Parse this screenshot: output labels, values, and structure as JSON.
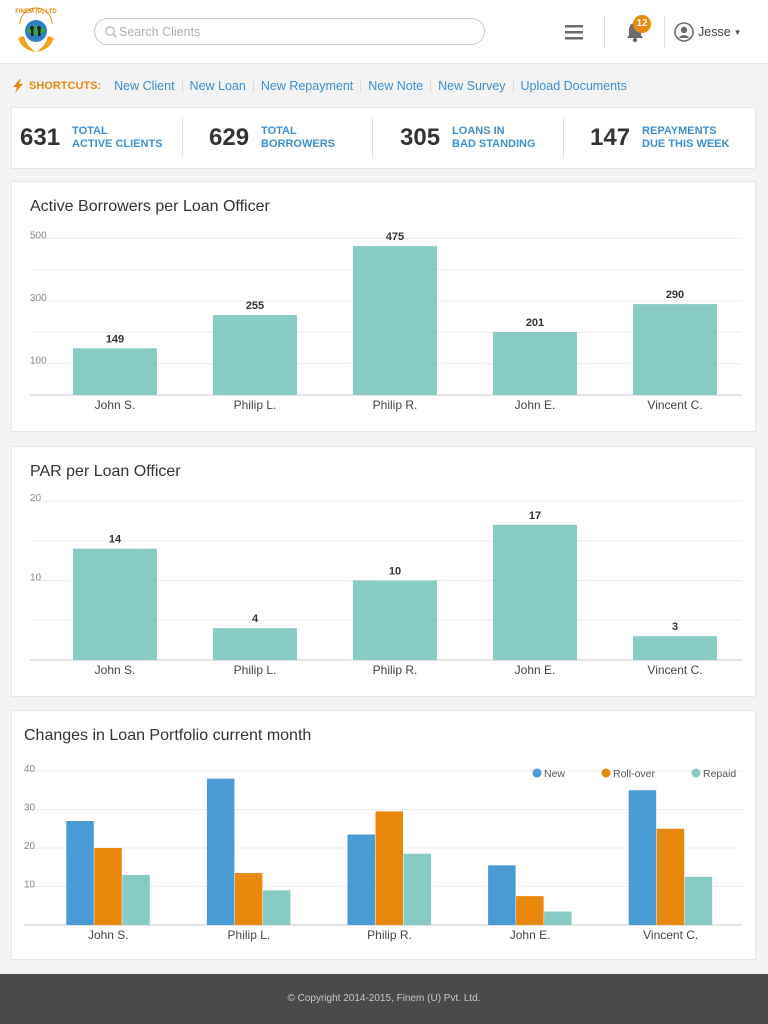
{
  "header": {
    "logo_text": "FINEM (U) LTD",
    "search_placeholder": "Search Clients",
    "notification_count": "12",
    "user_name": "Jesse"
  },
  "shortcuts": {
    "label": "SHORTCUTS:",
    "links": [
      "New Client",
      "New Loan",
      "New Repayment",
      "New Note",
      "New Survey",
      "Upload Documents"
    ]
  },
  "stats": [
    {
      "value": "631",
      "label_line1": "TOTAL",
      "label_line2": "ACTIVE CLIENTS"
    },
    {
      "value": "629",
      "label_line1": "TOTAL",
      "label_line2": "BORROWERS"
    },
    {
      "value": "305",
      "label_line1": "LOANS IN",
      "label_line2": "BAD STANDING"
    },
    {
      "value": "147",
      "label_line1": "REPAYMENTS",
      "label_line2": "DUE THIS WEEK"
    }
  ],
  "colors": {
    "accent": "#3e8fd0",
    "orange": "#e8890e",
    "teal": "#88cbc5",
    "blue": "#4a9ad4"
  },
  "chart_data": [
    {
      "type": "bar",
      "title": "Active Borrowers per Loan Officer",
      "categories": [
        "John S.",
        "Philip L.",
        "Philip R.",
        "John E.",
        "Vincent C."
      ],
      "values": [
        149,
        255,
        475,
        201,
        290
      ],
      "yticks": [
        100,
        300,
        500
      ],
      "ylim": [
        0,
        520
      ],
      "grid": true
    },
    {
      "type": "bar",
      "title": "PAR per Loan Officer",
      "categories": [
        "John S.",
        "Philip L.",
        "Philip R.",
        "John E.",
        "Vincent C."
      ],
      "values": [
        14,
        4,
        10,
        17,
        3
      ],
      "yticks": [
        10,
        20
      ],
      "ylim": [
        0,
        20.5
      ],
      "grid": true
    },
    {
      "type": "bar",
      "title": "Changes in Loan Portfolio current month",
      "categories": [
        "John S.",
        "Philip L.",
        "Philip R.",
        "John E.",
        "Vincent C."
      ],
      "series": [
        {
          "name": "New",
          "color": "#4a9ad4",
          "values": [
            27,
            38,
            23.5,
            15.5,
            35
          ]
        },
        {
          "name": "Roll-over",
          "color": "#e8890e",
          "values": [
            20,
            13.5,
            29.5,
            7.5,
            25
          ]
        },
        {
          "name": "Repaid",
          "color": "#88cbc5",
          "values": [
            13,
            9,
            18.5,
            3.5,
            12.5
          ]
        }
      ],
      "yticks": [
        10,
        20,
        30,
        40
      ],
      "ylim": [
        0,
        40
      ],
      "grid": true,
      "legend": "top-right"
    }
  ],
  "footer": {
    "copyright": "© Copyright 2014-2015, Finem (U) Pvt. Ltd."
  }
}
